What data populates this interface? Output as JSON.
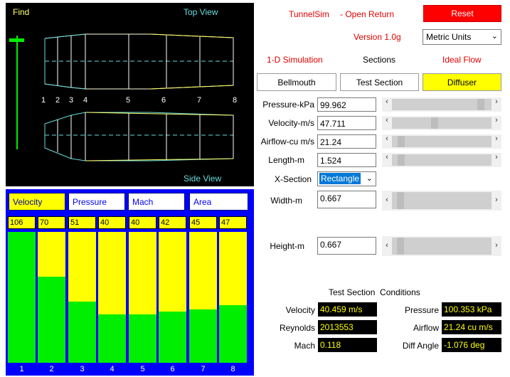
{
  "view": {
    "find_label": "Find",
    "top_view_label": "Top View",
    "side_view_label": "Side View",
    "section_numbers": [
      "1",
      "2",
      "3",
      "4",
      "5",
      "6",
      "7",
      "8"
    ]
  },
  "bars": {
    "tabs": [
      {
        "label": "Velocity",
        "active": true
      },
      {
        "label": "Pressure",
        "active": false
      },
      {
        "label": "Mach",
        "active": false
      },
      {
        "label": "Area",
        "active": false
      }
    ],
    "items": [
      {
        "num": "1",
        "value": "106",
        "fill": 1.0
      },
      {
        "num": "2",
        "value": "70",
        "fill": 0.66
      },
      {
        "num": "3",
        "value": "51",
        "fill": 0.47
      },
      {
        "num": "4",
        "value": "40",
        "fill": 0.37
      },
      {
        "num": "5",
        "value": "40",
        "fill": 0.37
      },
      {
        "num": "6",
        "value": "42",
        "fill": 0.39
      },
      {
        "num": "7",
        "value": "45",
        "fill": 0.41
      },
      {
        "num": "8",
        "value": "47",
        "fill": 0.44
      }
    ],
    "colors": {
      "panel": "#0000ff",
      "fill": "#00ee00",
      "bg": "#ffff00"
    }
  },
  "header": {
    "app_name": "TunnelSim",
    "mode": "- Open Return",
    "reset_label": "Reset",
    "version": "Version 1.0g",
    "units_selected": "Metric Units",
    "simulation": "1-D Simulation",
    "sections_label": "Sections",
    "flow": "Ideal Flow"
  },
  "section_buttons": [
    {
      "label": "Bellmouth",
      "active": false
    },
    {
      "label": "Test Section",
      "active": false
    },
    {
      "label": "Diffuser",
      "active": true
    }
  ],
  "inputs": {
    "pressure": {
      "label": "Pressure-kPa",
      "value": "99.962",
      "slider": 0.92
    },
    "velocity": {
      "label": "Velocity-m/s",
      "value": "47.711",
      "slider": 0.42
    },
    "airflow": {
      "label": "Airflow-cu m/s",
      "value": "21.24",
      "slider": 0.06
    },
    "length": {
      "label": "Length-m",
      "value": "1.524",
      "slider": 0.06
    },
    "xsection": {
      "label": "X-Section",
      "value": "Rectangle"
    },
    "width": {
      "label": "Width-m",
      "value": "0.667",
      "slider": 0.05
    },
    "height": {
      "label": "Height-m",
      "value": "0.667",
      "slider": 0.05
    }
  },
  "conditions": {
    "title": "Test Section  Conditions",
    "velocity": {
      "label": "Velocity",
      "value": "40.459 m/s"
    },
    "reynolds": {
      "label": "Reynolds",
      "value": "2013553"
    },
    "mach": {
      "label": "Mach",
      "value": "0.118"
    },
    "pressure": {
      "label": "Pressure",
      "value": "100.353 kPa"
    },
    "airflow": {
      "label": "Airflow",
      "value": "21.24 cu m/s"
    },
    "diff_angle": {
      "label": "Diff Angle",
      "value": "-1.076 deg"
    }
  }
}
